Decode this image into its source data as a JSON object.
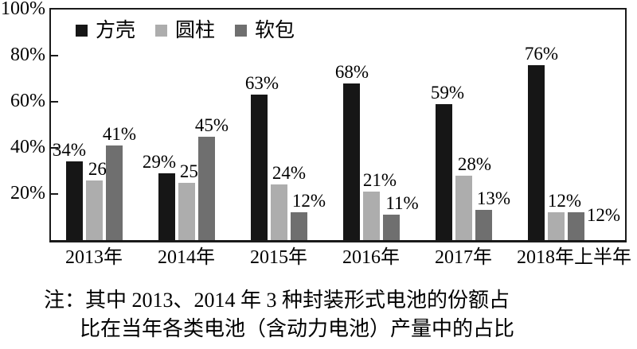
{
  "chart_data": {
    "type": "bar",
    "title": "",
    "categories": [
      "2013年",
      "2014年",
      "2015年",
      "2016年",
      "2017年",
      "2018年上半年"
    ],
    "series": [
      {
        "name": "方壳",
        "color": "#161616",
        "values": [
          34,
          29,
          63,
          68,
          59,
          76
        ]
      },
      {
        "name": "圆柱",
        "color": "#adadad",
        "values": [
          26,
          25,
          24,
          21,
          28,
          12
        ]
      },
      {
        "name": "软包",
        "color": "#6f6f6f",
        "values": [
          41,
          45,
          12,
          11,
          13,
          12
        ]
      }
    ],
    "value_label_suffix": "%",
    "y_ticks": [
      {
        "label": "100%",
        "value": 100
      },
      {
        "label": "80%",
        "value": 80
      },
      {
        "label": "60%",
        "value": 60
      },
      {
        "label": "40%",
        "value": 40
      },
      {
        "label": "20%",
        "value": 20
      }
    ],
    "ylim": [
      0,
      100
    ],
    "grid": false,
    "legend_position": "top-inside",
    "axis_color": "#1a1a1a"
  },
  "note": {
    "line1": "注：其中 2013、2014 年 3 种封装形式电池的份额占",
    "line2": "比在当年各类电池（含动力电池）产量中的占比"
  }
}
